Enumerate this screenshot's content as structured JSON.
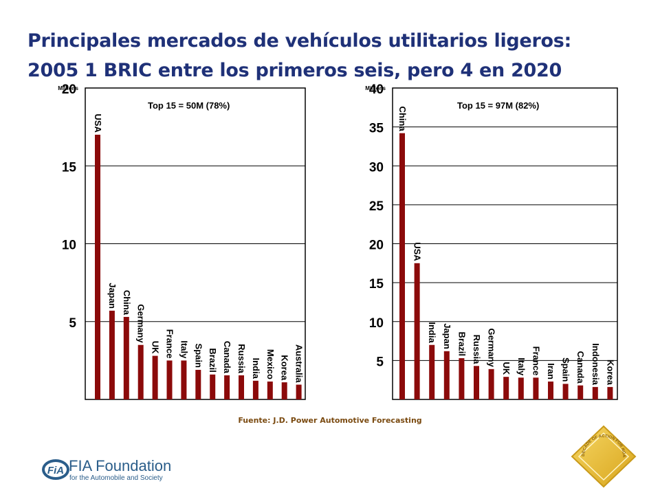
{
  "header": {
    "title_line1": "Principales mercados de vehículos utilitarios ligeros:",
    "title_line2": "2005 1 BRIC entre los primeros seis, pero 4 en 2020"
  },
  "source": "Fuente: J.D. Power Automotive Forecasting",
  "logo": {
    "mark": "FiA",
    "name": "FIA Foundation",
    "subtitle": "for the Automobile and Society"
  },
  "badge": {
    "text": "DECADE OF ACTION FOR ROAD SAFETY 2011-2020"
  },
  "colors": {
    "title": "#1f3178",
    "bar": "#8b0a0a",
    "source": "#7a4a10",
    "logo": "#2a5d8a"
  },
  "chart_data": [
    {
      "type": "bar",
      "unit_label": "Millions",
      "annotation": "Top 15 = 50M  (78%)",
      "ylim": [
        0,
        20
      ],
      "yticks": [
        5,
        10,
        15,
        20
      ],
      "categories": [
        "USA",
        "Japan",
        "China",
        "Germany",
        "UK",
        "France",
        "Italy",
        "Spain",
        "Brazil",
        "Canada",
        "Russia",
        "India",
        "Mexico",
        "Korea",
        "Australia"
      ],
      "values": [
        17.0,
        5.7,
        5.3,
        3.5,
        2.8,
        2.5,
        2.5,
        1.9,
        1.6,
        1.55,
        1.55,
        1.2,
        1.15,
        1.1,
        0.95
      ]
    },
    {
      "type": "bar",
      "unit_label": "Millions",
      "annotation": "Top 15 = 97M  (82%)",
      "ylim": [
        0,
        40
      ],
      "yticks": [
        5,
        10,
        15,
        20,
        25,
        30,
        35,
        40
      ],
      "categories": [
        "China",
        "USA",
        "India",
        "Japan",
        "Brazil",
        "Russia",
        "Germany",
        "UK",
        "Italy",
        "France",
        "Iran",
        "Spain",
        "Canada",
        "Indonesia",
        "Korea"
      ],
      "values": [
        34.2,
        17.5,
        7.0,
        6.2,
        5.3,
        4.3,
        3.9,
        2.9,
        2.8,
        2.8,
        2.3,
        2.0,
        1.8,
        1.6,
        1.6
      ]
    }
  ]
}
